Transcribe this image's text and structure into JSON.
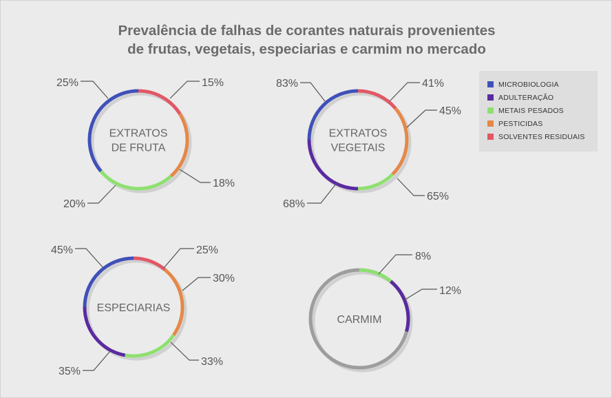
{
  "title": {
    "line1": "Prevalência de falhas de corantes naturais provenientes",
    "line2": "de frutas, vegetais, especiarias e carmim no mercado"
  },
  "colors": {
    "microbiologia": "#4050b8",
    "adulteracao": "#5a2aa0",
    "metais_pesados": "#8ee070",
    "pesticidas": "#e58848",
    "solventes_residuais": "#e05866",
    "base_ring": "#ffffff",
    "carmim_ring": "#9d9d9d",
    "leader": "#555555",
    "label_text": "#555555"
  },
  "legend": {
    "items": [
      {
        "label": "MICROBIOLOGIA",
        "color": "#4050b8"
      },
      {
        "label": "ADULTERAÇÃO",
        "color": "#5a2aa0"
      },
      {
        "label": "METAIS PESADOS",
        "color": "#8ee070"
      },
      {
        "label": "PESTICIDAS",
        "color": "#e58848"
      },
      {
        "label": "SOLVENTES RESIDUAIS",
        "color": "#e05866"
      }
    ]
  },
  "chart_data": [
    {
      "type": "donut",
      "label": [
        "EXTRATOS",
        "DE FRUTA"
      ],
      "series": [
        {
          "name": "SOLVENTES RESIDUAIS",
          "value": "15%"
        },
        {
          "name": "PESTICIDAS",
          "value": "18%"
        },
        {
          "name": "METAIS PESADOS",
          "value": "20%"
        },
        {
          "name": "MICROBIOLOGIA",
          "value": "25%"
        }
      ]
    },
    {
      "type": "donut",
      "label": [
        "EXTRATOS",
        "VEGETAIS"
      ],
      "series": [
        {
          "name": "SOLVENTES RESIDUAIS",
          "value": "41%"
        },
        {
          "name": "PESTICIDAS",
          "value": "45%"
        },
        {
          "name": "METAIS PESADOS",
          "value": "65%"
        },
        {
          "name": "ADULTERAÇÃO",
          "value": "68%"
        },
        {
          "name": "MICROBIOLOGIA",
          "value": "83%"
        }
      ]
    },
    {
      "type": "donut",
      "label": [
        "ESPECIARIAS"
      ],
      "series": [
        {
          "name": "SOLVENTES RESIDUAIS",
          "value": "25%"
        },
        {
          "name": "PESTICIDAS",
          "value": "30%"
        },
        {
          "name": "METAIS PESADOS",
          "value": "33%"
        },
        {
          "name": "ADULTERAÇÃO",
          "value": "35%"
        },
        {
          "name": "MICROBIOLOGIA",
          "value": "45%"
        }
      ]
    },
    {
      "type": "donut",
      "label": [
        "CARMIM"
      ],
      "series": [
        {
          "name": "METAIS PESADOS",
          "value": "8%"
        },
        {
          "name": "ADULTERAÇÃO",
          "value": "12%"
        }
      ]
    }
  ]
}
